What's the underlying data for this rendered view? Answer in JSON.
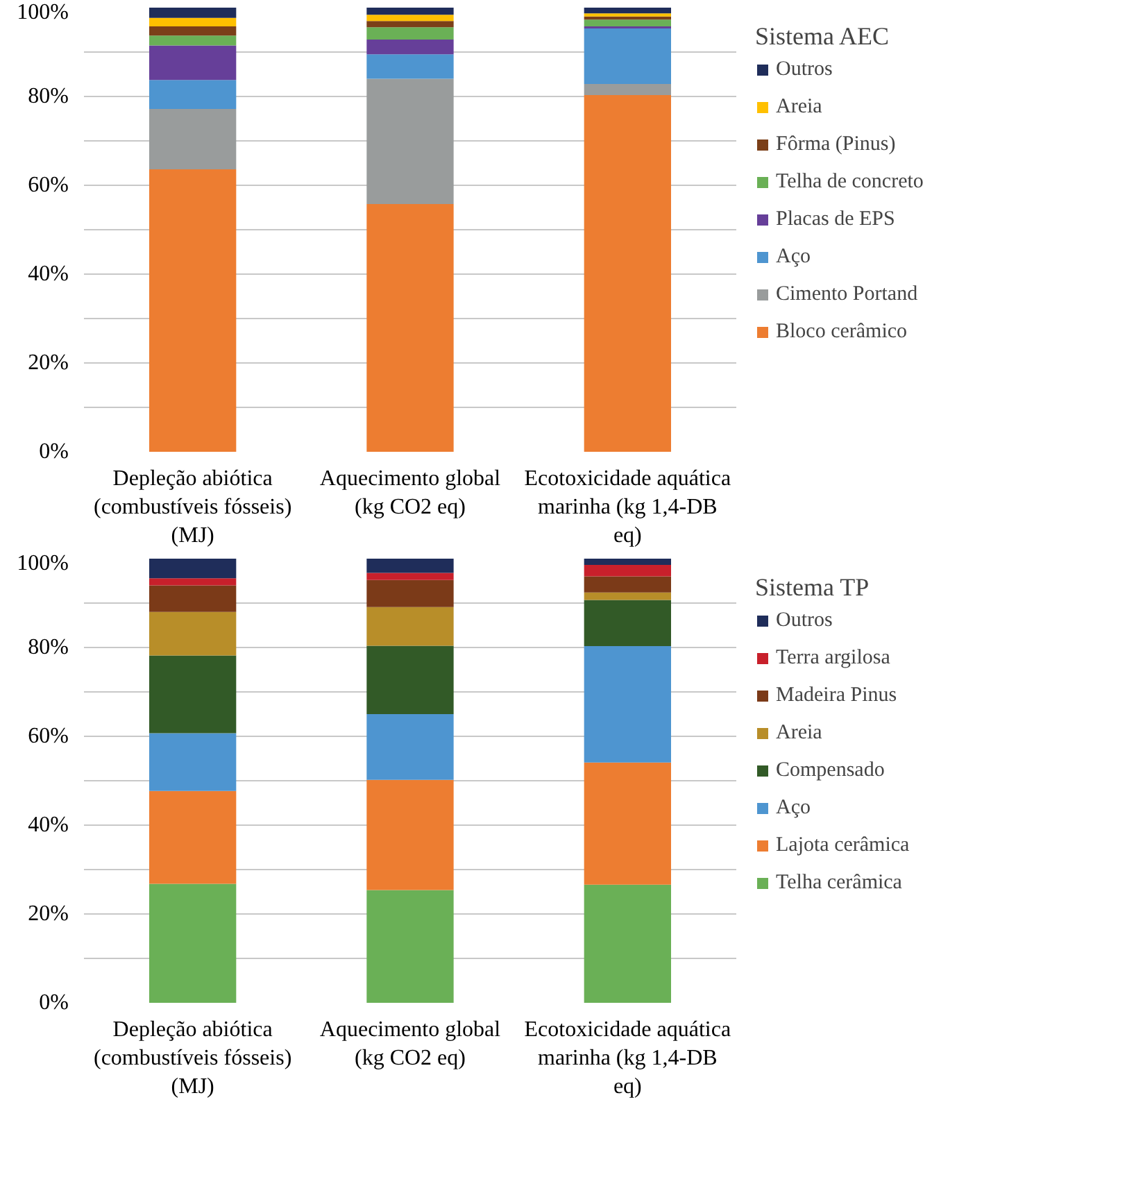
{
  "chart_data": [
    {
      "type": "bar",
      "stacked": true,
      "legend_title": "Sistema AEC",
      "legend": "right",
      "grid": "y",
      "categories": [
        "Depleção abiótica\n(combustíveis fósseis)\n(MJ)",
        "Aquecimento global\n(kg CO2 eq)",
        "Ecotoxicidade aquática\nmarinha (kg 1,4-DB\neq)"
      ],
      "ylim": [
        0,
        100
      ],
      "yticks": [
        {
          "value": 0,
          "label": "0%"
        },
        {
          "value": 10,
          "label": null
        },
        {
          "value": 20,
          "label": "20%"
        },
        {
          "value": 30,
          "label": null
        },
        {
          "value": 40,
          "label": "40%"
        },
        {
          "value": 50,
          "label": null
        },
        {
          "value": 60,
          "label": "60%"
        },
        {
          "value": 70,
          "label": null
        },
        {
          "value": 80,
          "label": "80%"
        },
        {
          "value": 90,
          "label": null
        },
        {
          "value": 100,
          "label": "100%"
        }
      ],
      "series": [
        {
          "name": "Bloco cerâmico",
          "color": "#ed7d31",
          "values": [
            63.6,
            55.8,
            80.3
          ]
        },
        {
          "name": "Cimento Portand",
          "color": "#999c9c",
          "values": [
            13.6,
            28.2,
            2.5
          ]
        },
        {
          "name": "Aço",
          "color": "#4e95d0",
          "values": [
            6.5,
            5.5,
            12.5
          ]
        },
        {
          "name": "Placas de EPS",
          "color": "#663f99",
          "values": [
            7.8,
            3.3,
            0.5
          ]
        },
        {
          "name": "Telha de concreto",
          "color": "#6ab056",
          "values": [
            2.2,
            2.8,
            1.5
          ]
        },
        {
          "name": "Fôrma (Pinus)",
          "color": "#7b3f18",
          "values": [
            2.1,
            1.4,
            0.7
          ]
        },
        {
          "name": "Areia",
          "color": "#ffc000",
          "values": [
            1.9,
            1.4,
            0.7
          ]
        },
        {
          "name": "Outros",
          "color": "#1f2d5a",
          "values": [
            2.3,
            1.6,
            1.3
          ]
        }
      ]
    },
    {
      "type": "bar",
      "stacked": true,
      "legend_title": "Sistema TP",
      "legend": "right",
      "grid": "y",
      "categories": [
        "Depleção abiótica\n(combustíveis fósseis)\n(MJ)",
        "Aquecimento global\n(kg CO2 eq)",
        "Ecotoxicidade aquática\nmarinha (kg 1,4-DB\neq)"
      ],
      "ylim": [
        0,
        100
      ],
      "yticks": [
        {
          "value": 0,
          "label": "0%"
        },
        {
          "value": 10,
          "label": null
        },
        {
          "value": 20,
          "label": "20%"
        },
        {
          "value": 30,
          "label": null
        },
        {
          "value": 40,
          "label": "40%"
        },
        {
          "value": 50,
          "label": null
        },
        {
          "value": 60,
          "label": "60%"
        },
        {
          "value": 70,
          "label": null
        },
        {
          "value": 80,
          "label": "80%"
        },
        {
          "value": 90,
          "label": null
        },
        {
          "value": 100,
          "label": "100%"
        }
      ],
      "series": [
        {
          "name": "Telha cerâmica",
          "color": "#6ab056",
          "values": [
            26.8,
            25.4,
            26.6
          ]
        },
        {
          "name": "Lajota cerâmica",
          "color": "#ed7d31",
          "values": [
            20.9,
            24.8,
            27.5
          ]
        },
        {
          "name": "Aço",
          "color": "#4e95d0",
          "values": [
            13.0,
            14.8,
            26.2
          ]
        },
        {
          "name": "Compensado",
          "color": "#325a27",
          "values": [
            17.5,
            15.4,
            10.4
          ]
        },
        {
          "name": "Areia",
          "color": "#b88e29",
          "values": [
            9.8,
            8.7,
            1.7
          ]
        },
        {
          "name": "Madeira Pinus",
          "color": "#7b3a18",
          "values": [
            6.0,
            6.1,
            3.6
          ]
        },
        {
          "name": "Terra argilosa",
          "color": "#c8202b",
          "values": [
            1.6,
            1.6,
            2.6
          ]
        },
        {
          "name": "Outros",
          "color": "#1f2d5a",
          "values": [
            4.4,
            3.2,
            1.4
          ]
        }
      ]
    }
  ]
}
